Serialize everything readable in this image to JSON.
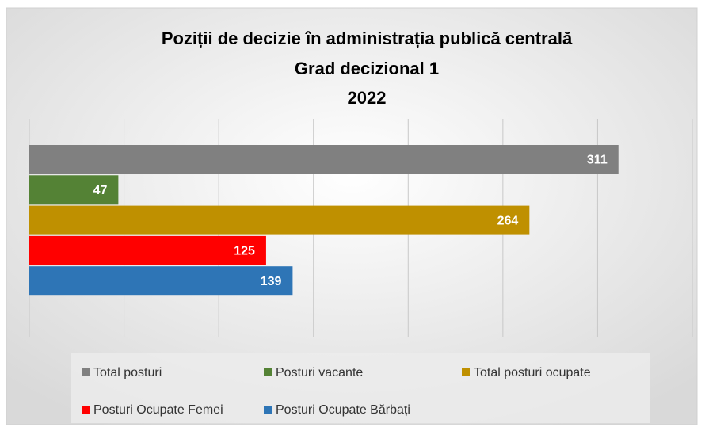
{
  "chart_data": {
    "type": "bar",
    "orientation": "horizontal",
    "title": [
      "Poziții de decizie în administrația publică centrală",
      "Grad decizional 1",
      "2022"
    ],
    "categories": [
      null
    ],
    "series": [
      {
        "name": "Total posturi",
        "color": "#808080",
        "values": [
          311
        ]
      },
      {
        "name": "Posturi vacante",
        "color": "#548235",
        "values": [
          47
        ]
      },
      {
        "name": "Total posturi ocupate",
        "color": "#bf9000",
        "values": [
          264
        ]
      },
      {
        "name": "Posturi Ocupate Femei",
        "color": "#ff0000",
        "values": [
          125
        ]
      },
      {
        "name": "Posturi Ocupate Bărbați",
        "color": "#2e75b6",
        "values": [
          139
        ]
      }
    ],
    "xlim": [
      0,
      350
    ],
    "xticks": [
      0,
      50,
      100,
      150,
      200,
      250,
      300,
      350
    ],
    "grid": true,
    "legend": "bottom"
  }
}
